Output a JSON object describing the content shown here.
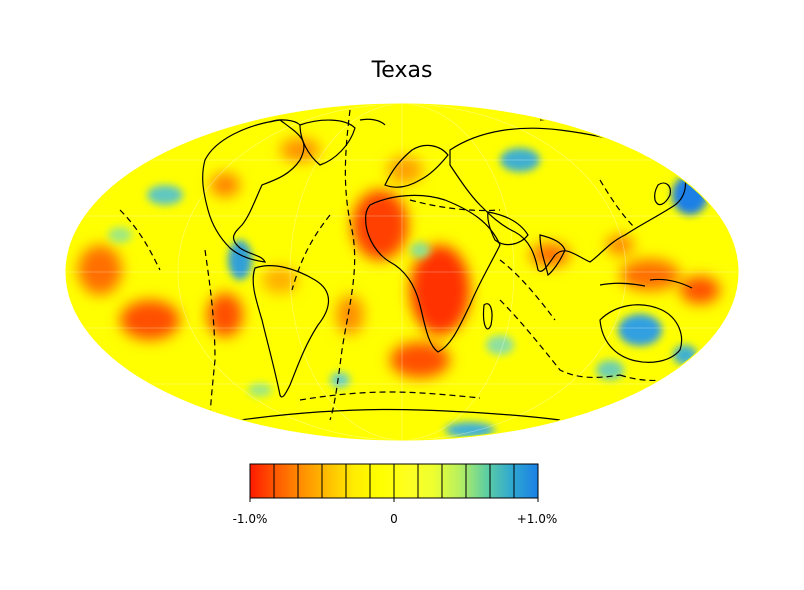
{
  "title": "Texas",
  "colorbar": {
    "min_label": "-1.0%",
    "mid_label": "0",
    "max_label": "+1.0%",
    "range": [
      -1.0,
      1.0
    ],
    "steps": 12,
    "colors": [
      "#ff1a00",
      "#ff5a00",
      "#ff9000",
      "#ffc000",
      "#ffee00",
      "#ffff00",
      "#ffff20",
      "#eeff30",
      "#b8f060",
      "#60d0a0",
      "#30a8d0",
      "#1a80e6"
    ]
  },
  "map": {
    "projection": "mollweide",
    "ocean_color": "#ffff00",
    "coastline_color": "#000000",
    "plate_boundary_style": "dashed"
  }
}
